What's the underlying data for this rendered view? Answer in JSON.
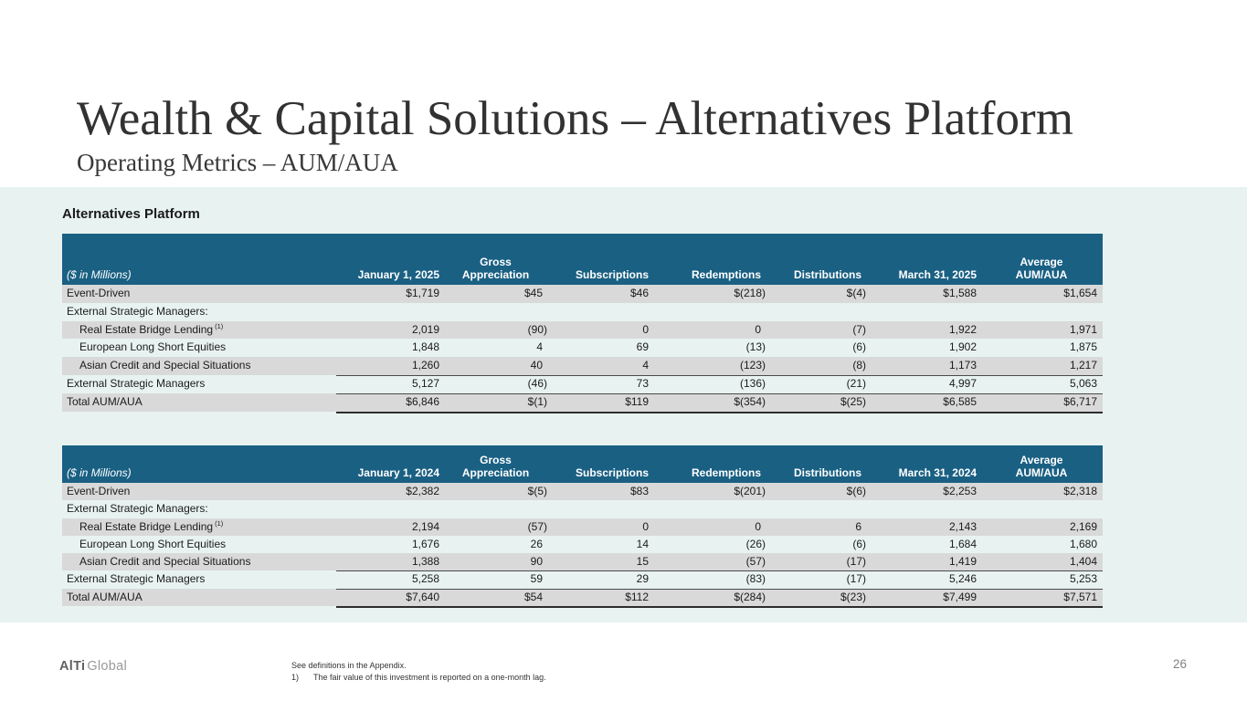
{
  "header": {
    "title": "Wealth & Capital Solutions – Alternatives Platform",
    "subtitle": "Operating Metrics – AUM/AUA"
  },
  "section_label": "Alternatives Platform",
  "colors": {
    "table_header_teal": "#1A6083",
    "row_stripe_gray": "#D9D9D9",
    "content_band_mint": "#E8F3F1"
  },
  "tables": [
    {
      "name": "aum-table-q1-2025",
      "unit_label": "($ in Millions)",
      "columns": [
        {
          "line1": "",
          "line2": "January 1, 2025"
        },
        {
          "line1": "Gross",
          "line2": "Appreciation"
        },
        {
          "line1": "",
          "line2": "Subscriptions"
        },
        {
          "line1": "",
          "line2": "Redemptions"
        },
        {
          "line1": "",
          "line2": "Distributions"
        },
        {
          "line1": "",
          "line2": "March 31, 2025"
        },
        {
          "line1": "Average",
          "line2": "AUM/AUA"
        }
      ],
      "rows": [
        {
          "label": "Event-Driven",
          "indent": false,
          "sup": "",
          "shade": true,
          "rule": "",
          "values": [
            "$1,719",
            "$45",
            "$46",
            "$(218)",
            "$(4)",
            "$1,588",
            "$1,654"
          ]
        },
        {
          "label": "External Strategic Managers:",
          "indent": false,
          "sup": "",
          "shade": false,
          "rule": "",
          "values": [
            "",
            "",
            "",
            "",
            "",
            "",
            ""
          ]
        },
        {
          "label": "Real Estate Bridge Lending",
          "indent": true,
          "sup": "(1)",
          "shade": true,
          "rule": "",
          "values": [
            "2,019",
            "(90)",
            "0",
            "0",
            "(7)",
            "1,922",
            "1,971"
          ]
        },
        {
          "label": "European Long Short Equities",
          "indent": true,
          "sup": "",
          "shade": false,
          "rule": "",
          "values": [
            "1,848",
            "4",
            "69",
            "(13)",
            "(6)",
            "1,902",
            "1,875"
          ]
        },
        {
          "label": "Asian Credit and Special Situations",
          "indent": true,
          "sup": "",
          "shade": true,
          "rule": "line",
          "values": [
            "1,260",
            "40",
            "4",
            "(123)",
            "(8)",
            "1,173",
            "1,217"
          ]
        },
        {
          "label": "External Strategic Managers",
          "indent": false,
          "sup": "",
          "shade": false,
          "rule": "line",
          "values": [
            "5,127",
            "(46)",
            "73",
            "(136)",
            "(21)",
            "4,997",
            "5,063"
          ]
        },
        {
          "label": "Total AUM/AUA",
          "indent": false,
          "sup": "",
          "shade": true,
          "rule": "total",
          "values": [
            "$6,846",
            "$(1)",
            "$119",
            "$(354)",
            "$(25)",
            "$6,585",
            "$6,717"
          ]
        }
      ]
    },
    {
      "name": "aum-table-q1-2024",
      "unit_label": "($ in Millions)",
      "columns": [
        {
          "line1": "",
          "line2": "January 1, 2024"
        },
        {
          "line1": "Gross",
          "line2": "Appreciation"
        },
        {
          "line1": "",
          "line2": "Subscriptions"
        },
        {
          "line1": "",
          "line2": "Redemptions"
        },
        {
          "line1": "",
          "line2": "Distributions"
        },
        {
          "line1": "",
          "line2": "March 31, 2024"
        },
        {
          "line1": "Average",
          "line2": "AUM/AUA"
        }
      ],
      "rows": [
        {
          "label": "Event-Driven",
          "indent": false,
          "sup": "",
          "shade": true,
          "rule": "",
          "values": [
            "$2,382",
            "$(5)",
            "$83",
            "$(201)",
            "$(6)",
            "$2,253",
            "$2,318"
          ]
        },
        {
          "label": "External Strategic Managers:",
          "indent": false,
          "sup": "",
          "shade": false,
          "rule": "",
          "values": [
            "",
            "",
            "",
            "",
            "",
            "",
            ""
          ]
        },
        {
          "label": "Real Estate Bridge Lending",
          "indent": true,
          "sup": "(1)",
          "shade": true,
          "rule": "",
          "values": [
            "2,194",
            "(57)",
            "0",
            "0",
            "6",
            "2,143",
            "2,169"
          ]
        },
        {
          "label": "European Long Short Equities",
          "indent": true,
          "sup": "",
          "shade": false,
          "rule": "",
          "values": [
            "1,676",
            "26",
            "14",
            "(26)",
            "(6)",
            "1,684",
            "1,680"
          ]
        },
        {
          "label": "Asian Credit and Special Situations",
          "indent": true,
          "sup": "",
          "shade": true,
          "rule": "line",
          "values": [
            "1,388",
            "90",
            "15",
            "(57)",
            "(17)",
            "1,419",
            "1,404"
          ]
        },
        {
          "label": "External Strategic Managers",
          "indent": false,
          "sup": "",
          "shade": false,
          "rule": "line",
          "values": [
            "5,258",
            "59",
            "29",
            "(83)",
            "(17)",
            "5,246",
            "5,253"
          ]
        },
        {
          "label": "Total AUM/AUA",
          "indent": false,
          "sup": "",
          "shade": true,
          "rule": "total",
          "values": [
            "$7,640",
            "$54",
            "$112",
            "$(284)",
            "$(23)",
            "$7,499",
            "$7,571"
          ]
        }
      ]
    }
  ],
  "footer": {
    "logo_bold": "AlTi",
    "logo_light": "Global",
    "note_line1": "See definitions in the Appendix.",
    "footnote_marker": "1)",
    "footnote_text": "The fair value of this investment is reported on a one-month lag.",
    "page_number": "26"
  }
}
